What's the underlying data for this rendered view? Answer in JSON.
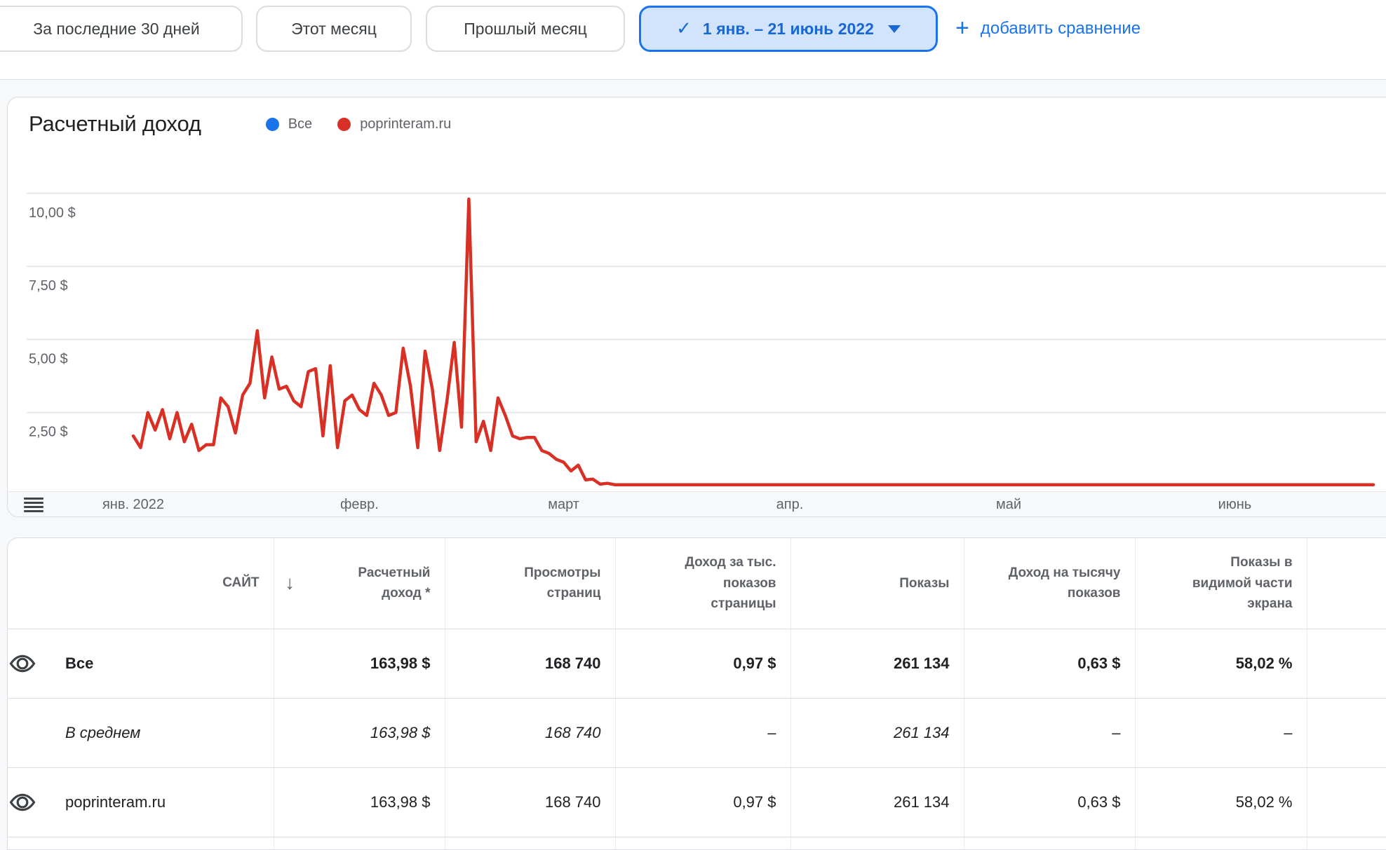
{
  "colors": {
    "accent_blue": "#1a73e8",
    "selected_chip_bg": "#d2e3fc",
    "selected_chip_text": "#1967d2",
    "line_red": "#d93025"
  },
  "filters": {
    "last_30_days": "За последние 30 дней",
    "this_month": "Этот месяц",
    "last_month": "Прошлый месяц",
    "date_range": "1 янв. – 21 июнь 2022",
    "check": "✓",
    "plus": "+",
    "add_comparison": "добавить сравнение"
  },
  "chart": {
    "title": "Расчетный доход",
    "legend": [
      {
        "label": "Все",
        "color": "#1a73e8"
      },
      {
        "label": "poprinteram.ru",
        "color": "#d93025"
      }
    ]
  },
  "chart_data": {
    "type": "line",
    "title": "Расчетный доход",
    "unit": "$",
    "start_date": "2022-01-01",
    "end_date": "2022-06-21",
    "ylim": [
      0,
      11.7
    ],
    "grid": true,
    "legend_position": "top",
    "y_ticks": [
      {
        "label": "10,00 $",
        "value": 10
      },
      {
        "label": "7,50 $",
        "value": 7.5
      },
      {
        "label": "5,00 $",
        "value": 5
      },
      {
        "label": "2,50 $",
        "value": 2.5
      }
    ],
    "x_ticks": [
      {
        "label": "янв. 2022",
        "day": 0
      },
      {
        "label": "февр.",
        "day": 31
      },
      {
        "label": "март",
        "day": 59
      },
      {
        "label": "апр.",
        "day": 90
      },
      {
        "label": "май",
        "day": 120
      },
      {
        "label": "июнь",
        "day": 151
      }
    ],
    "series": [
      {
        "name": "Все",
        "color": "#1a73e8"
      },
      {
        "name": "poprinteram.ru",
        "color": "#d93025"
      }
    ],
    "values": [
      1.7,
      1.3,
      2.5,
      1.9,
      2.6,
      1.6,
      2.5,
      1.5,
      2.1,
      1.2,
      1.4,
      1.4,
      3.0,
      2.7,
      1.8,
      3.1,
      3.5,
      5.3,
      3.0,
      4.4,
      3.3,
      3.4,
      2.9,
      2.7,
      3.9,
      4.0,
      1.7,
      4.1,
      1.3,
      2.9,
      3.1,
      2.6,
      2.4,
      3.5,
      3.1,
      2.4,
      2.5,
      4.7,
      3.4,
      1.3,
      4.6,
      3.3,
      1.2,
      2.9,
      4.9,
      2.0,
      9.8,
      1.5,
      2.2,
      1.2,
      3.0,
      2.4,
      1.7,
      1.6,
      1.65,
      1.65,
      1.2,
      1.1,
      0.9,
      0.8,
      0.5,
      0.7,
      0.2,
      0.22,
      0.05,
      0.08,
      0.03,
      0.03,
      0.03,
      0.03,
      0.03,
      0.03,
      0.03,
      0.03,
      0.03,
      0.03,
      0.03,
      0.03,
      0.03,
      0.03,
      0.03,
      0.03,
      0.03,
      0.03,
      0.03,
      0.03,
      0.03,
      0.03,
      0.03,
      0.03,
      0.03,
      0.03,
      0.03,
      0.03,
      0.03,
      0.03,
      0.03,
      0.03,
      0.03,
      0.03,
      0.03,
      0.03,
      0.03,
      0.03,
      0.03,
      0.03,
      0.03,
      0.03,
      0.03,
      0.03,
      0.03,
      0.03,
      0.03,
      0.03,
      0.03,
      0.03,
      0.03,
      0.03,
      0.03,
      0.03,
      0.03,
      0.03,
      0.03,
      0.03,
      0.03,
      0.03,
      0.03,
      0.03,
      0.03,
      0.03,
      0.03,
      0.03,
      0.03,
      0.03,
      0.03,
      0.03,
      0.03,
      0.03,
      0.03,
      0.03,
      0.03,
      0.03,
      0.03,
      0.03,
      0.03,
      0.03,
      0.03,
      0.03,
      0.03,
      0.03,
      0.03,
      0.03,
      0.03,
      0.03,
      0.03,
      0.03,
      0.03,
      0.03,
      0.03,
      0.03,
      0.03,
      0.03,
      0.03,
      0.03,
      0.03,
      0.03,
      0.03,
      0.03,
      0.03,
      0.03,
      0.03
    ]
  },
  "table": {
    "columns": [
      {
        "label": "САЙТ"
      },
      {
        "label": "Расчетный доход *",
        "sorted": "desc",
        "sort_icon": "↓"
      },
      {
        "label": "Просмотры страниц"
      },
      {
        "label": "Доход за тыс. показов страницы"
      },
      {
        "label": "Показы"
      },
      {
        "label": "Доход на тысячу показов"
      },
      {
        "label": "Показы в видимой части экрана"
      }
    ],
    "rows": [
      {
        "site": "Все",
        "revenue": "163,98 $",
        "page_views": "168 740",
        "rpm_pages": "0,97 $",
        "impressions": "261 134",
        "rpm_impressions": "0,63 $",
        "viewability": "58,02 %"
      },
      {
        "site": "В среднем",
        "revenue": "163,98 $",
        "page_views": "168 740",
        "rpm_pages": "–",
        "impressions": "261 134",
        "rpm_impressions": "–",
        "viewability": "–"
      },
      {
        "site": "poprinteram.ru",
        "revenue": "163,98 $",
        "page_views": "168 740",
        "rpm_pages": "0,97 $",
        "impressions": "261 134",
        "rpm_impressions": "0,63 $",
        "viewability": "58,02 %"
      }
    ]
  }
}
